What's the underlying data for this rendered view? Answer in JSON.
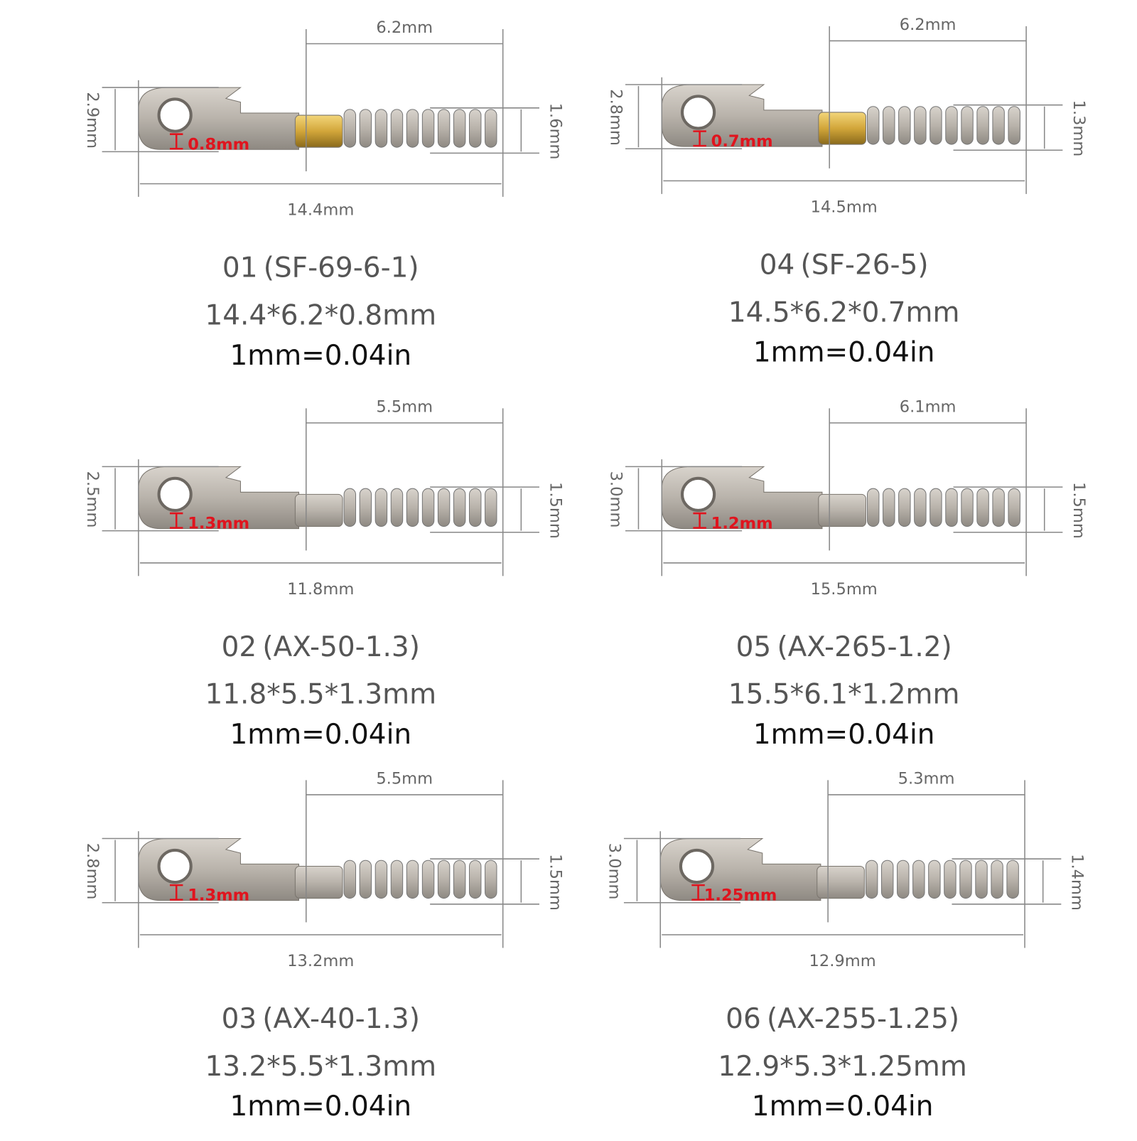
{
  "colors": {
    "dimension_line": "#888888",
    "hole_label": "#e0141e",
    "metal": "#b9b3ab",
    "brass": "#d2a63a",
    "spring": "#bdbdbd"
  },
  "items": [
    {
      "code": "01",
      "model": "(SF-69-6-1)",
      "size": "14.4*6.2*0.8mm",
      "conversion": "1mm=0.04in",
      "spring_length": "6.2mm",
      "height": "2.9mm",
      "spring_diameter": "1.6mm",
      "total_length": "14.4mm",
      "thickness": "0.8mm",
      "neck": "brass"
    },
    {
      "code": "04",
      "model": "(SF-26-5)",
      "size": "14.5*6.2*0.7mm",
      "conversion": "1mm=0.04in",
      "spring_length": "6.2mm",
      "height": "2.8mm",
      "spring_diameter": "1.3mm",
      "total_length": "14.5mm",
      "thickness": "0.7mm",
      "neck": "brass"
    },
    {
      "code": "02",
      "model": "(AX-50-1.3)",
      "size": "11.8*5.5*1.3mm",
      "conversion": "1mm=0.04in",
      "spring_length": "5.5mm",
      "height": "2.5mm",
      "spring_diameter": "1.5mm",
      "total_length": "11.8mm",
      "thickness": "1.3mm",
      "neck": "steel"
    },
    {
      "code": "05",
      "model": "(AX-265-1.2)",
      "size": "15.5*6.1*1.2mm",
      "conversion": "1mm=0.04in",
      "spring_length": "6.1mm",
      "height": "3.0mm",
      "spring_diameter": "1.5mm",
      "total_length": "15.5mm",
      "thickness": "1.2mm",
      "neck": "steel"
    },
    {
      "code": "03",
      "model": "(AX-40-1.3)",
      "size": "13.2*5.5*1.3mm",
      "conversion": "1mm=0.04in",
      "spring_length": "5.5mm",
      "height": "2.8mm",
      "spring_diameter": "1.5mm",
      "total_length": "13.2mm",
      "thickness": "1.3mm",
      "neck": "steel"
    },
    {
      "code": "06",
      "model": "(AX-255-1.25)",
      "size": "12.9*5.3*1.25mm",
      "conversion": "1mm=0.04in",
      "spring_length": "5.3mm",
      "height": "3.0mm",
      "spring_diameter": "1.4mm",
      "total_length": "12.9mm",
      "thickness": "1.25mm",
      "neck": "steel"
    }
  ]
}
